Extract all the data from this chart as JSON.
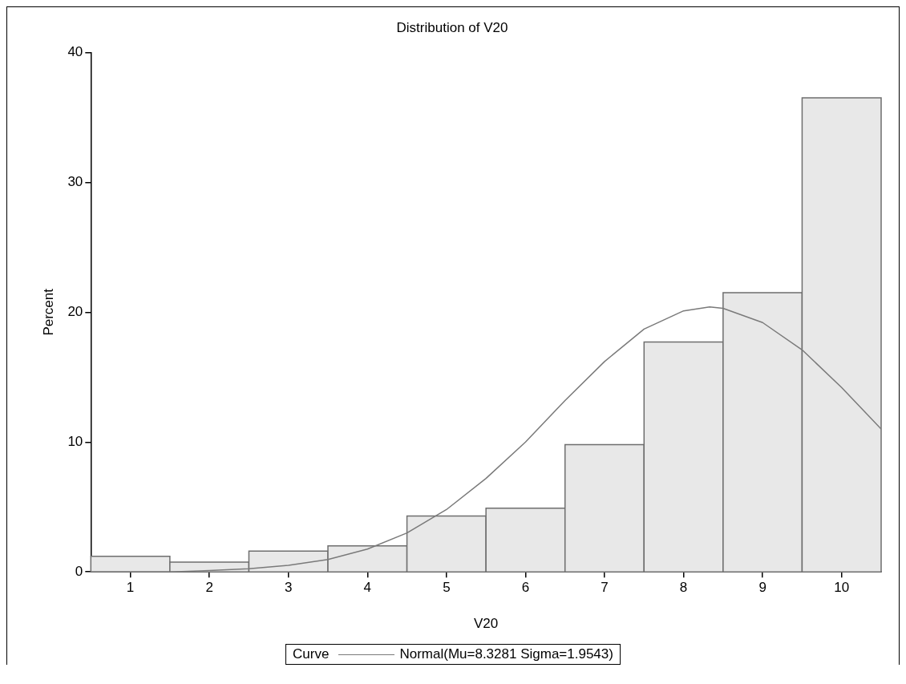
{
  "chart_data": {
    "type": "histogram",
    "title": "Distribution of V20",
    "xlabel": "V20",
    "ylabel": "Percent",
    "bins": [
      0.5,
      1.5,
      2.5,
      3.5,
      4.5,
      5.5,
      6.5,
      7.5,
      8.5,
      9.5,
      10.5
    ],
    "values": [
      1.2,
      0.75,
      1.6,
      2.0,
      4.3,
      4.9,
      9.8,
      17.7,
      21.5,
      36.5
    ],
    "color": "#e8e8e8",
    "series": [
      {
        "type": "line",
        "name": "Normal(Mu=8.3281 Sigma=1.9543)",
        "color": "#7a7a7a",
        "x": [
          0.5,
          1,
          1.5,
          2,
          2.5,
          3,
          3.5,
          4,
          4.5,
          5,
          5.5,
          6,
          6.5,
          7,
          7.5,
          8,
          8.33,
          8.5,
          9,
          9.5,
          10,
          10.5
        ],
        "values": [
          0,
          0,
          0,
          0.1,
          0.24,
          0.5,
          0.96,
          1.76,
          3.0,
          4.8,
          7.2,
          10.0,
          13.2,
          16.2,
          18.7,
          20.1,
          20.4,
          20.3,
          19.2,
          17.1,
          14.2,
          11.0
        ]
      }
    ],
    "legend_title": "Curve",
    "legend": "bottom",
    "marker": "none",
    "line_style": "solid",
    "grid": false,
    "xlim": [
      0.5,
      10.5
    ],
    "xticks": [
      1,
      2,
      3,
      4,
      5,
      6,
      7,
      8,
      9,
      10
    ],
    "ylim": [
      0,
      40
    ],
    "yticks": [
      0,
      10,
      20,
      30,
      40
    ]
  }
}
